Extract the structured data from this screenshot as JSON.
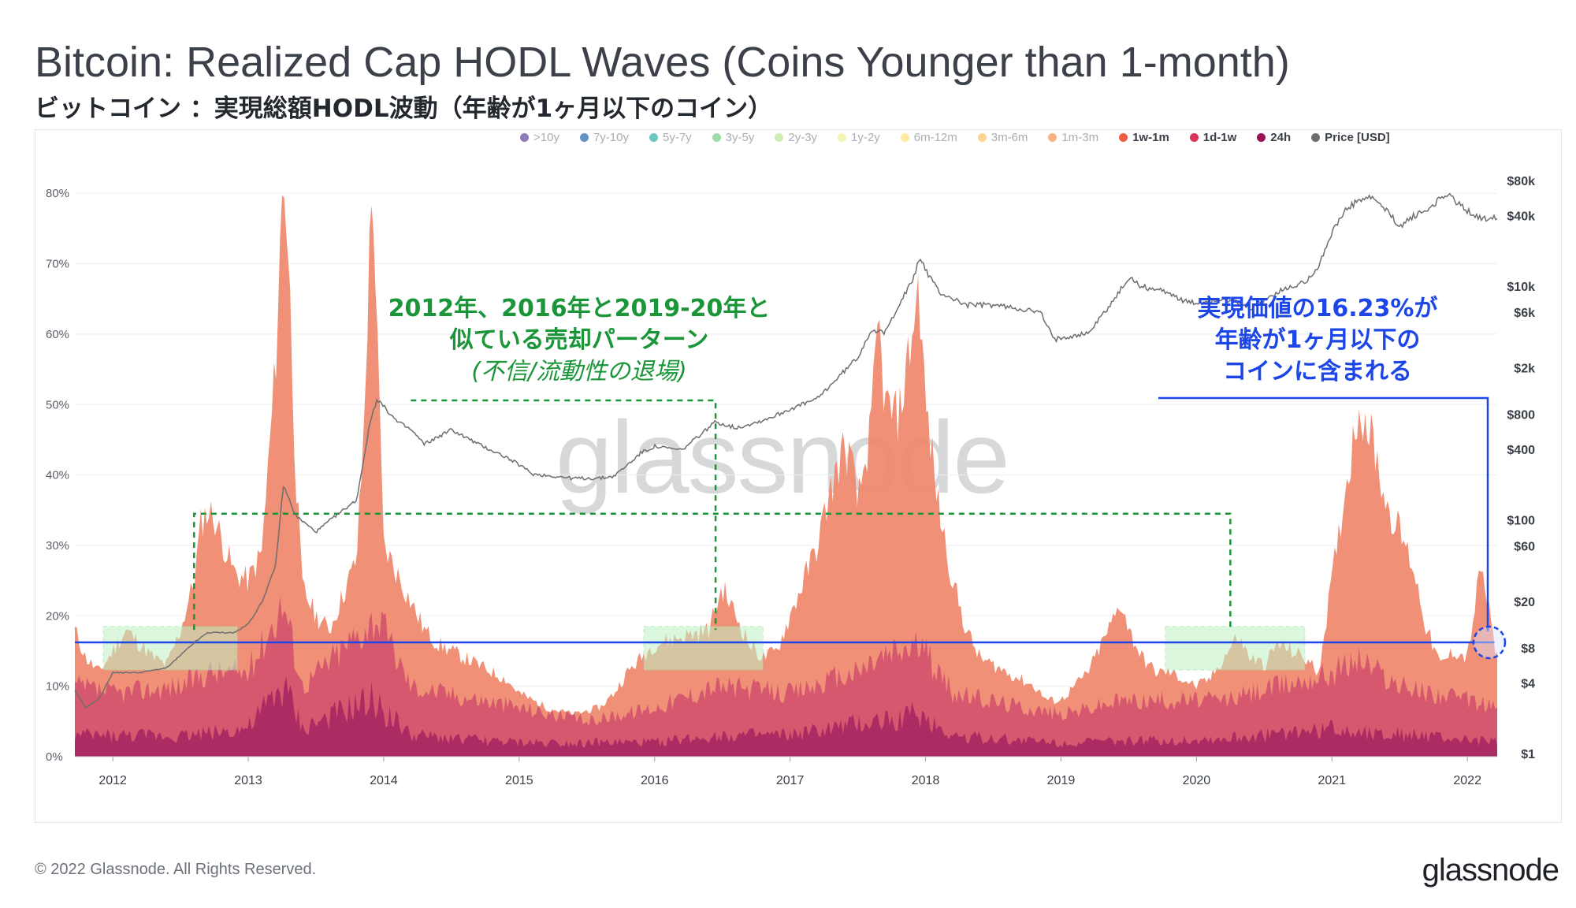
{
  "header": {
    "title": "Bitcoin: Realized Cap HODL Waves (Coins Younger than 1-month)",
    "subtitle": "ビットコイン ：実現総額HODL波動（年齢が1ヶ月以下のコイン）"
  },
  "legend": [
    {
      "label": ">10y",
      "color": "#6a4fa3",
      "active": false
    },
    {
      "label": "7y-10y",
      "color": "#2f6fb0",
      "active": false
    },
    {
      "label": "5y-7y",
      "color": "#3bb5a8",
      "active": false
    },
    {
      "label": "3y-5y",
      "color": "#7dcf8c",
      "active": false
    },
    {
      "label": "2y-3y",
      "color": "#bde49a",
      "active": false
    },
    {
      "label": "1y-2y",
      "color": "#eef29a",
      "active": false
    },
    {
      "label": "6m-12m",
      "color": "#fde27f",
      "active": false
    },
    {
      "label": "3m-6m",
      "color": "#fcc46b",
      "active": false
    },
    {
      "label": "1m-3m",
      "color": "#f59a58",
      "active": false
    },
    {
      "label": "1w-1m",
      "color": "#ee5f3f",
      "active": true
    },
    {
      "label": "1d-1w",
      "color": "#d6365a",
      "active": true
    },
    {
      "label": "24h",
      "color": "#9c1155",
      "active": true
    },
    {
      "label": "Price [USD]",
      "color": "#6e6e6e",
      "active": true
    }
  ],
  "annotations": {
    "green_line1": "2012年、2016年と2019-20年と",
    "green_line2": "似ている売却パーターン",
    "green_line3": "(不信/流動性の退場)",
    "blue_line1": "実現価値の16.23%が",
    "blue_line2": "年齢が1ヶ月以下の",
    "blue_line3": "コインに含まれる"
  },
  "watermark": "glassnode",
  "footer": {
    "copyright": "© 2022 Glassnode. All Rights Reserved.",
    "brand": "glassnode"
  },
  "chart_data": {
    "type": "area",
    "title": "Bitcoin: Realized Cap HODL Waves (Coins Younger than 1-month)",
    "x_ticks": [
      "2012",
      "2013",
      "2014",
      "2015",
      "2016",
      "2017",
      "2018",
      "2019",
      "2020",
      "2021",
      "2022"
    ],
    "y_left_ticks": [
      "0%",
      "10%",
      "20%",
      "30%",
      "40%",
      "50%",
      "60%",
      "70%",
      "80%"
    ],
    "y_left_range": [
      0,
      80
    ],
    "y_right_ticks": [
      "$1",
      "$4",
      "$8",
      "$20",
      "$60",
      "$100",
      "$400",
      "$800",
      "$2k",
      "$6k",
      "$10k",
      "$40k",
      "$80k"
    ],
    "y_right_range_usd": [
      1,
      80000
    ],
    "reference_level_pct": 16.23,
    "series": [
      {
        "name": "1w-1m (stacked total)",
        "color": "#ef8a70",
        "x": [
          2011.72,
          2011.8,
          2011.9,
          2012.0,
          2012.1,
          2012.2,
          2012.3,
          2012.4,
          2012.5,
          2012.6,
          2012.65,
          2012.7,
          2012.75,
          2012.8,
          2012.9,
          2013.0,
          2013.1,
          2013.2,
          2013.26,
          2013.3,
          2013.35,
          2013.4,
          2013.5,
          2013.6,
          2013.7,
          2013.8,
          2013.85,
          2013.9,
          2013.92,
          2013.95,
          2014.0,
          2014.1,
          2014.2,
          2014.3,
          2014.4,
          2014.5,
          2014.6,
          2014.7,
          2014.8,
          2014.9,
          2015.0,
          2015.2,
          2015.4,
          2015.6,
          2015.7,
          2015.8,
          2015.9,
          2016.0,
          2016.2,
          2016.4,
          2016.45,
          2016.5,
          2016.6,
          2016.7,
          2016.8,
          2016.9,
          2017.0,
          2017.1,
          2017.2,
          2017.3,
          2017.4,
          2017.45,
          2017.5,
          2017.6,
          2017.65,
          2017.7,
          2017.8,
          2017.9,
          2017.95,
          2018.0,
          2018.1,
          2018.2,
          2018.3,
          2018.4,
          2018.5,
          2018.6,
          2018.7,
          2018.8,
          2018.9,
          2019.0,
          2019.1,
          2019.2,
          2019.3,
          2019.4,
          2019.45,
          2019.5,
          2019.6,
          2019.7,
          2019.8,
          2019.9,
          2020.0,
          2020.1,
          2020.2,
          2020.3,
          2020.4,
          2020.5,
          2020.6,
          2020.7,
          2020.8,
          2020.9,
          2021.0,
          2021.1,
          2021.2,
          2021.3,
          2021.4,
          2021.5,
          2021.6,
          2021.7,
          2021.8,
          2021.9,
          2022.0,
          2022.1,
          2022.2,
          2022.22
        ],
        "values": [
          18,
          14,
          12,
          15,
          18,
          16,
          14,
          13,
          18,
          25,
          33,
          35,
          34,
          31,
          26,
          25,
          29,
          55,
          84,
          70,
          40,
          24,
          20,
          18,
          23,
          28,
          45,
          74,
          82,
          60,
          30,
          26,
          22,
          18,
          16,
          15,
          14,
          13,
          12,
          11,
          9,
          7,
          6,
          7,
          9,
          12,
          14,
          16,
          17,
          18,
          21,
          24,
          20,
          16,
          14,
          15,
          20,
          25,
          30,
          38,
          44,
          42,
          36,
          47,
          62,
          50,
          48,
          60,
          67,
          50,
          35,
          25,
          18,
          14,
          13,
          12,
          11,
          10,
          8,
          8,
          10,
          12,
          16,
          20,
          22,
          18,
          14,
          12,
          12,
          11,
          10,
          11,
          14,
          17,
          14,
          13,
          16,
          15,
          14,
          12,
          25,
          38,
          50,
          45,
          36,
          32,
          27,
          18,
          13,
          15,
          14,
          27,
          16,
          14
        ]
      },
      {
        "name": "1d-1w",
        "color": "#d14f6c",
        "x": [
          2011.72,
          2012.0,
          2012.5,
          2012.7,
          2013.0,
          2013.26,
          2013.4,
          2013.9,
          2013.95,
          2014.2,
          2015.0,
          2015.5,
          2016.0,
          2016.45,
          2017.0,
          2017.5,
          2017.65,
          2017.95,
          2018.2,
          2019.0,
          2019.45,
          2020.2,
          2021.0,
          2021.2,
          2021.5,
          2022.0,
          2022.22
        ],
        "values": [
          10,
          9,
          10,
          12,
          12,
          22,
          10,
          19,
          20,
          10,
          7,
          5,
          7,
          10,
          9,
          12,
          14,
          16,
          9,
          6,
          8,
          8,
          12,
          14,
          10,
          8,
          7
        ]
      },
      {
        "name": "24h",
        "color": "#a32361",
        "x": [
          2011.72,
          2012.5,
          2013.0,
          2013.26,
          2013.4,
          2013.92,
          2014.2,
          2015.0,
          2016.0,
          2016.45,
          2017.0,
          2017.65,
          2017.95,
          2018.2,
          2019.0,
          2020.2,
          2021.0,
          2022.22
        ],
        "values": [
          3,
          3,
          4,
          10,
          4,
          8,
          3,
          2,
          2,
          3,
          3,
          5,
          6,
          3,
          2,
          2.5,
          4,
          2
        ]
      },
      {
        "name": "Price [USD]",
        "color": "#6e6e6e",
        "axis": "right",
        "x": [
          2011.72,
          2011.8,
          2011.9,
          2012.0,
          2012.2,
          2012.4,
          2012.6,
          2012.7,
          2012.9,
          2013.0,
          2013.1,
          2013.2,
          2013.26,
          2013.35,
          2013.5,
          2013.6,
          2013.8,
          2013.9,
          2013.95,
          2014.1,
          2014.2,
          2014.3,
          2014.5,
          2014.7,
          2014.9,
          2015.0,
          2015.1,
          2015.4,
          2015.6,
          2015.7,
          2015.8,
          2015.9,
          2016.0,
          2016.2,
          2016.45,
          2016.6,
          2016.8,
          2016.9,
          2017.0,
          2017.2,
          2017.4,
          2017.5,
          2017.6,
          2017.7,
          2017.8,
          2017.9,
          2017.96,
          2018.0,
          2018.1,
          2018.3,
          2018.5,
          2018.7,
          2018.85,
          2018.95,
          2019.0,
          2019.2,
          2019.4,
          2019.5,
          2019.6,
          2019.8,
          2019.9,
          2020.0,
          2020.2,
          2020.4,
          2020.6,
          2020.8,
          2020.9,
          2021.0,
          2021.1,
          2021.2,
          2021.3,
          2021.4,
          2021.5,
          2021.6,
          2021.7,
          2021.8,
          2021.85,
          2021.9,
          2022.0,
          2022.1,
          2022.22
        ],
        "values": [
          3.5,
          2.5,
          3,
          5,
          5,
          5.5,
          9,
          11,
          11,
          13,
          20,
          40,
          200,
          110,
          80,
          100,
          150,
          700,
          1100,
          700,
          600,
          450,
          600,
          450,
          350,
          300,
          250,
          230,
          230,
          240,
          300,
          380,
          430,
          400,
          700,
          620,
          720,
          800,
          900,
          1100,
          1900,
          2500,
          4300,
          4000,
          7000,
          11000,
          18000,
          14000,
          9000,
          7000,
          7000,
          6500,
          6000,
          3500,
          3700,
          4000,
          8000,
          12000,
          10000,
          9000,
          7500,
          7200,
          8000,
          6500,
          9000,
          11000,
          15000,
          29000,
          45000,
          55000,
          58000,
          45000,
          33000,
          40000,
          45000,
          57000,
          63000,
          55000,
          45000,
          38000,
          40000
        ]
      }
    ]
  }
}
